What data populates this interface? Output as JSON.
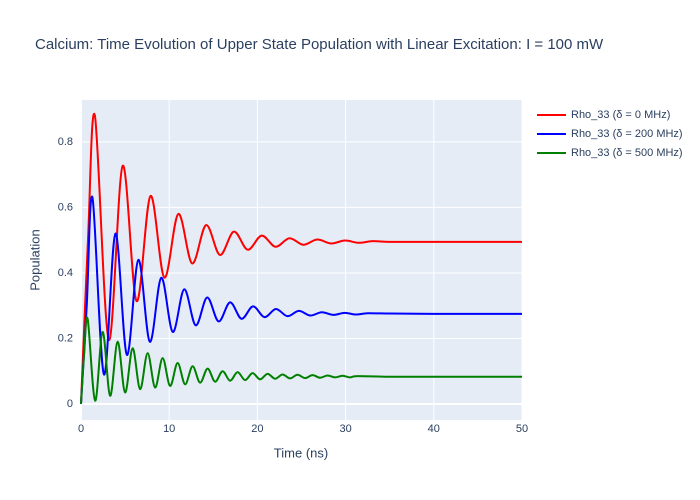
{
  "chart_data": {
    "type": "line",
    "title": "Calcium: Time Evolution of Upper State Population with Linear Excitation: I = 100 mW",
    "x_label": "Time (ns)",
    "y_label": "Population",
    "xlim": [
      0,
      50
    ],
    "ylim": [
      -0.049,
      0.928
    ],
    "xticks": [
      0,
      10,
      20,
      30,
      40,
      50
    ],
    "yticks": [
      0,
      0.2,
      0.4,
      0.6,
      0.8
    ],
    "grid": true,
    "legend": "right",
    "series": [
      {
        "name": "Rho_33 (δ = 0 MHz)",
        "color": "#ff0000",
        "x": [
          0,
          0.79,
          1.575,
          3.15,
          4.725,
          6.3,
          7.875,
          9.45,
          11.03,
          12.6,
          14.18,
          15.75,
          17.33,
          18.9,
          20.48,
          22.05,
          23.63,
          25.2,
          26.78,
          28.35,
          29.93,
          31.5,
          33.08,
          35,
          40,
          45,
          50
        ],
        "values": [
          0,
          0.5,
          0.88,
          0.196,
          0.727,
          0.314,
          0.635,
          0.386,
          0.58,
          0.429,
          0.546,
          0.455,
          0.526,
          0.471,
          0.514,
          0.48,
          0.506,
          0.486,
          0.502,
          0.49,
          0.499,
          0.492,
          0.497,
          0.495,
          0.495,
          0.495,
          0.495
        ]
      },
      {
        "name": "Rho_33 (δ = 200 MHz)",
        "color": "#0000ff",
        "x": [
          0,
          0.65,
          1.3,
          2.6,
          3.9,
          5.2,
          6.5,
          7.8,
          9.1,
          10.4,
          11.7,
          13.0,
          14.3,
          15.6,
          16.9,
          18.2,
          19.5,
          20.8,
          22.1,
          23.4,
          24.7,
          26,
          27.3,
          28.6,
          29.9,
          31.2,
          32.5,
          35,
          40,
          45,
          50
        ],
        "values": [
          0,
          0.3,
          0.63,
          0.09,
          0.52,
          0.15,
          0.44,
          0.19,
          0.385,
          0.22,
          0.35,
          0.24,
          0.325,
          0.252,
          0.31,
          0.26,
          0.298,
          0.265,
          0.29,
          0.268,
          0.284,
          0.27,
          0.28,
          0.272,
          0.278,
          0.273,
          0.277,
          0.276,
          0.275,
          0.275,
          0.275
        ]
      },
      {
        "name": "Rho_33 (δ = 500 MHz)",
        "color": "#008000",
        "x": [
          0,
          0.35,
          0.75,
          1.6,
          2.45,
          3.3,
          4.15,
          5.0,
          5.85,
          6.7,
          7.55,
          8.4,
          9.25,
          10.1,
          10.95,
          11.8,
          12.65,
          13.5,
          14.35,
          15.2,
          16.05,
          16.9,
          17.75,
          18.6,
          19.45,
          20.3,
          21.15,
          22,
          22.85,
          23.7,
          24.55,
          25.4,
          26.25,
          27.1,
          27.95,
          28.8,
          29.65,
          30.5,
          31.35,
          35,
          40,
          45,
          50
        ],
        "values": [
          0,
          0.15,
          0.26,
          0.01,
          0.22,
          0.025,
          0.19,
          0.035,
          0.17,
          0.045,
          0.155,
          0.05,
          0.14,
          0.055,
          0.125,
          0.06,
          0.115,
          0.065,
          0.108,
          0.068,
          0.1,
          0.071,
          0.097,
          0.073,
          0.094,
          0.075,
          0.092,
          0.077,
          0.09,
          0.078,
          0.089,
          0.079,
          0.088,
          0.08,
          0.087,
          0.081,
          0.086,
          0.081,
          0.085,
          0.083,
          0.083,
          0.083,
          0.083
        ]
      }
    ]
  }
}
